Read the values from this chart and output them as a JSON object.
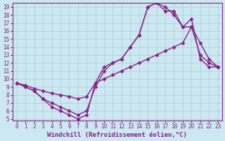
{
  "bg_color": "#cce8f0",
  "grid_color": "#aaccdd",
  "line_color": "#882288",
  "marker": "D",
  "markersize": 2.5,
  "linewidth": 1.0,
  "xlabel": "Windchill (Refroidissement éolien,°C)",
  "xlabel_fontsize": 6.5,
  "tick_fontsize": 5.5,
  "xlim": [
    -0.5,
    23.5
  ],
  "ylim": [
    4.8,
    19.5
  ],
  "yticks": [
    5,
    6,
    7,
    8,
    9,
    10,
    11,
    12,
    13,
    14,
    15,
    16,
    17,
    18,
    19
  ],
  "xticks": [
    0,
    1,
    2,
    3,
    4,
    5,
    6,
    7,
    8,
    9,
    10,
    11,
    12,
    13,
    14,
    15,
    16,
    17,
    18,
    19,
    20,
    21,
    22,
    23
  ],
  "line1_x": [
    0,
    1,
    2,
    3,
    4,
    5,
    6,
    7,
    8,
    9,
    10,
    11,
    12,
    13,
    14,
    15,
    16,
    17,
    18,
    19,
    20,
    21,
    22,
    23
  ],
  "line1_y": [
    9.5,
    9.0,
    8.5,
    7.5,
    6.5,
    6.0,
    5.5,
    5.0,
    5.5,
    9.5,
    11.5,
    12.0,
    12.5,
    14.0,
    15.5,
    19.0,
    19.5,
    19.0,
    18.0,
    16.5,
    17.5,
    12.5,
    11.5,
    11.5
  ],
  "line2_x": [
    0,
    1,
    2,
    3,
    4,
    5,
    6,
    7,
    8,
    9,
    10,
    11,
    12,
    13,
    14,
    15,
    16,
    17,
    18,
    19,
    20,
    21,
    22,
    23
  ],
  "line2_y": [
    9.5,
    9.0,
    8.5,
    7.5,
    7.0,
    6.5,
    6.0,
    5.5,
    6.0,
    9.0,
    11.0,
    12.0,
    12.5,
    14.0,
    15.5,
    19.0,
    19.5,
    18.5,
    18.5,
    16.5,
    16.5,
    13.0,
    12.0,
    11.5
  ],
  "line3_x": [
    0,
    1,
    2,
    3,
    4,
    5,
    6,
    7,
    8,
    9,
    10,
    11,
    12,
    13,
    14,
    15,
    16,
    17,
    18,
    19,
    20,
    21,
    22,
    23
  ],
  "line3_y": [
    9.5,
    9.2,
    8.8,
    8.5,
    8.2,
    8.0,
    7.8,
    7.5,
    7.8,
    9.5,
    10.0,
    10.5,
    11.0,
    11.5,
    12.0,
    12.5,
    13.0,
    13.5,
    14.0,
    14.5,
    16.5,
    14.5,
    12.5,
    11.5
  ]
}
